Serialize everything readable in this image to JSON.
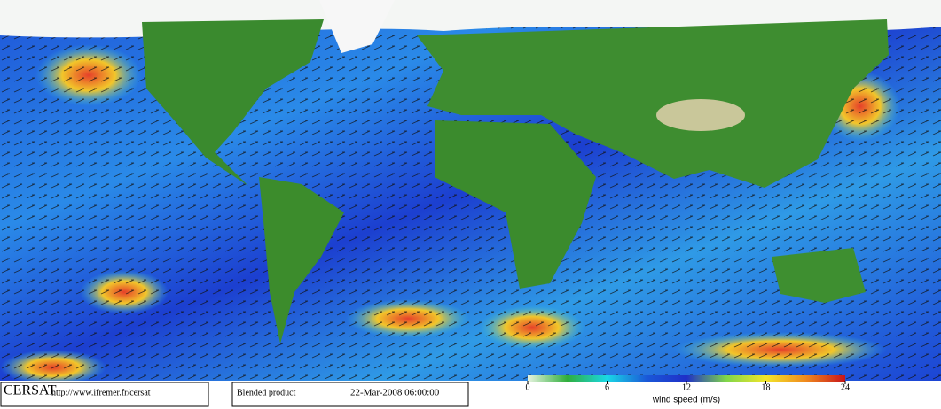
{
  "header": {
    "producer": "CERSAT",
    "url": "http://www.ifremer.fr/cersat",
    "product": "Blended product",
    "date": "22-Mar-2008 06:00:00"
  },
  "colorbar": {
    "label": "wind speed (m/s)",
    "lim": [
      0,
      24
    ],
    "ticks": [
      0,
      6,
      12,
      18,
      24
    ],
    "colors": [
      "#e8f4e0",
      "#2fae3c",
      "#19d8e6",
      "#1a58d8",
      "#1f2fc8",
      "#7fd64a",
      "#f3e62a",
      "#f08a1e",
      "#c8141a"
    ]
  }
}
